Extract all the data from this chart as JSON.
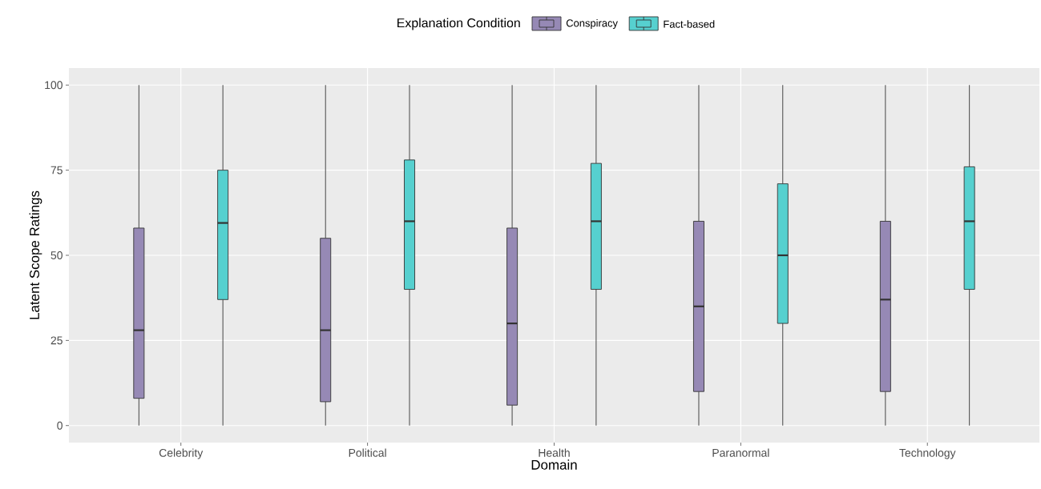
{
  "chart_data": {
    "type": "box",
    "xlabel": "Domain",
    "ylabel": "Latent Scope Ratings",
    "legend_title": "Explanation Condition",
    "legend": "top",
    "grid": true,
    "categories": [
      "Celebrity",
      "Political",
      "Health",
      "Paranormal",
      "Technology"
    ],
    "ylim": [
      -5,
      105
    ],
    "yticks": [
      0,
      25,
      50,
      75,
      100
    ],
    "series": [
      {
        "name": "Conspiracy",
        "color": "#9689b5",
        "boxes": [
          {
            "low": 0,
            "q1": 8,
            "median": 28,
            "q3": 58,
            "high": 100
          },
          {
            "low": 0,
            "q1": 7,
            "median": 28,
            "q3": 55,
            "high": 100
          },
          {
            "low": 0,
            "q1": 6,
            "median": 30,
            "q3": 58,
            "high": 100
          },
          {
            "low": 0,
            "q1": 10,
            "median": 35,
            "q3": 60,
            "high": 100
          },
          {
            "low": 0,
            "q1": 10,
            "median": 37,
            "q3": 60,
            "high": 100
          }
        ]
      },
      {
        "name": "Fact-based",
        "color": "#56d0cf",
        "boxes": [
          {
            "low": 0,
            "q1": 37,
            "median": 59.5,
            "q3": 75,
            "high": 100
          },
          {
            "low": 0,
            "q1": 40,
            "median": 60,
            "q3": 78,
            "high": 100
          },
          {
            "low": 0,
            "q1": 40,
            "median": 60,
            "q3": 77,
            "high": 100
          },
          {
            "low": 0,
            "q1": 30,
            "median": 50,
            "q3": 71,
            "high": 100
          },
          {
            "low": 0,
            "q1": 40,
            "median": 60,
            "q3": 76,
            "high": 100
          }
        ]
      }
    ]
  }
}
